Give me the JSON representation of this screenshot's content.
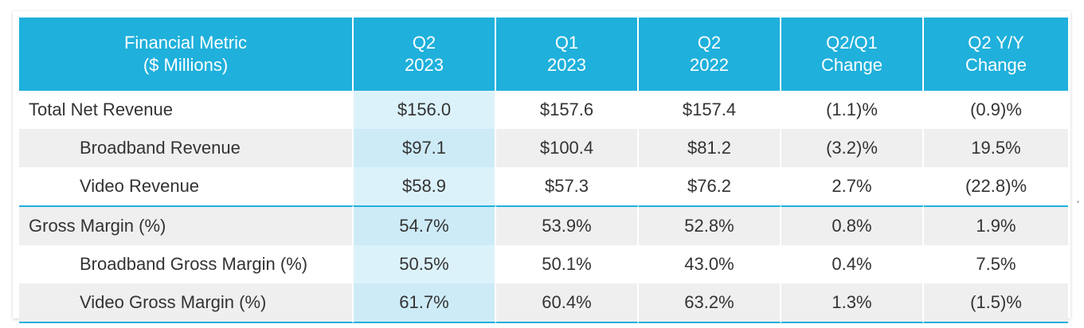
{
  "table": {
    "headers": [
      [
        "Financial Metric",
        "($ Millions)"
      ],
      [
        "Q2",
        "2023"
      ],
      [
        "Q1",
        "2023"
      ],
      [
        "Q2",
        "2022"
      ],
      [
        "Q2/Q1",
        "Change"
      ],
      [
        "Q2 Y/Y",
        "Change"
      ]
    ],
    "rows": [
      {
        "label": "Total Net Revenue",
        "values": [
          "$156.0",
          "$157.6",
          "$157.4",
          "(1.1)%",
          "(0.9)%"
        ]
      },
      {
        "label": "Broadband Revenue",
        "values": [
          "$97.1",
          "$100.4",
          "$81.2",
          "(3.2)%",
          "19.5%"
        ]
      },
      {
        "label": "Video Revenue",
        "values": [
          "$58.9",
          "$57.3",
          "$76.2",
          "2.7%",
          "(22.8)%"
        ]
      },
      {
        "label": "Gross Margin (%)",
        "values": [
          "54.7%",
          "53.9%",
          "52.8%",
          "0.8%",
          "1.9%"
        ]
      },
      {
        "label": "Broadband Gross Margin (%)",
        "values": [
          "50.5%",
          "50.1%",
          "43.0%",
          "0.4%",
          "7.5%"
        ]
      },
      {
        "label": "Video Gross Margin (%)",
        "values": [
          "61.7%",
          "60.4%",
          "63.2%",
          "1.3%",
          "(1.5)%"
        ]
      }
    ]
  },
  "colors": {
    "header_bg": "#1fb0dc",
    "header_text": "#ffffff",
    "highlight_column": "#dcf2fa",
    "shaded_row": "#efefef",
    "rule": "#1fb0dc"
  }
}
